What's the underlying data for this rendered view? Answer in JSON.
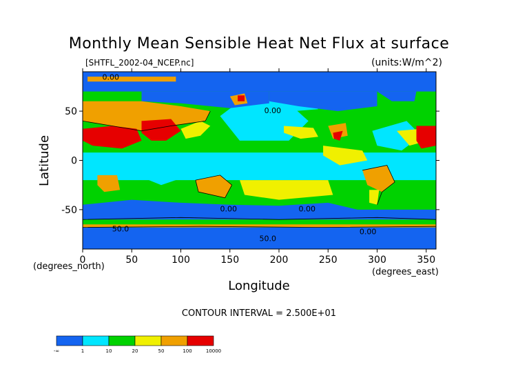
{
  "chart_data": {
    "type": "heatmap",
    "title": "Monthly Mean Sensible Heat Net Flux at surface",
    "file_label": "[SHTFL_2002-04_NCEP.nc]",
    "units_label": "(units:W/m^2)",
    "xlabel": "Longitude",
    "ylabel": "Latitude",
    "x_unit_note": "(degrees_east)",
    "y_unit_note": "(degrees_north)",
    "xlim": [
      0,
      360
    ],
    "ylim": [
      -90,
      90
    ],
    "x_ticks": [
      "0",
      "50",
      "100",
      "150",
      "200",
      "250",
      "300",
      "350"
    ],
    "x_tick_values": [
      0,
      50,
      100,
      150,
      200,
      250,
      300,
      350
    ],
    "y_ticks": [
      "50",
      "0",
      "-50"
    ],
    "y_tick_values": [
      50,
      0,
      -50
    ],
    "contour_interval_text": "CONTOUR INTERVAL = 2.500E+01",
    "contour_labels": [
      "0.00",
      "0.00",
      "0.00",
      "0.00",
      "50.0",
      "50.0",
      "0.00"
    ],
    "colorbar": {
      "labels": [
        "-∞",
        "1",
        "10",
        "20",
        "50",
        "100",
        "10000"
      ],
      "colors": [
        "#1464f0",
        "#00e6ff",
        "#00d200",
        "#f0f000",
        "#f0a000",
        "#e60000"
      ]
    }
  }
}
